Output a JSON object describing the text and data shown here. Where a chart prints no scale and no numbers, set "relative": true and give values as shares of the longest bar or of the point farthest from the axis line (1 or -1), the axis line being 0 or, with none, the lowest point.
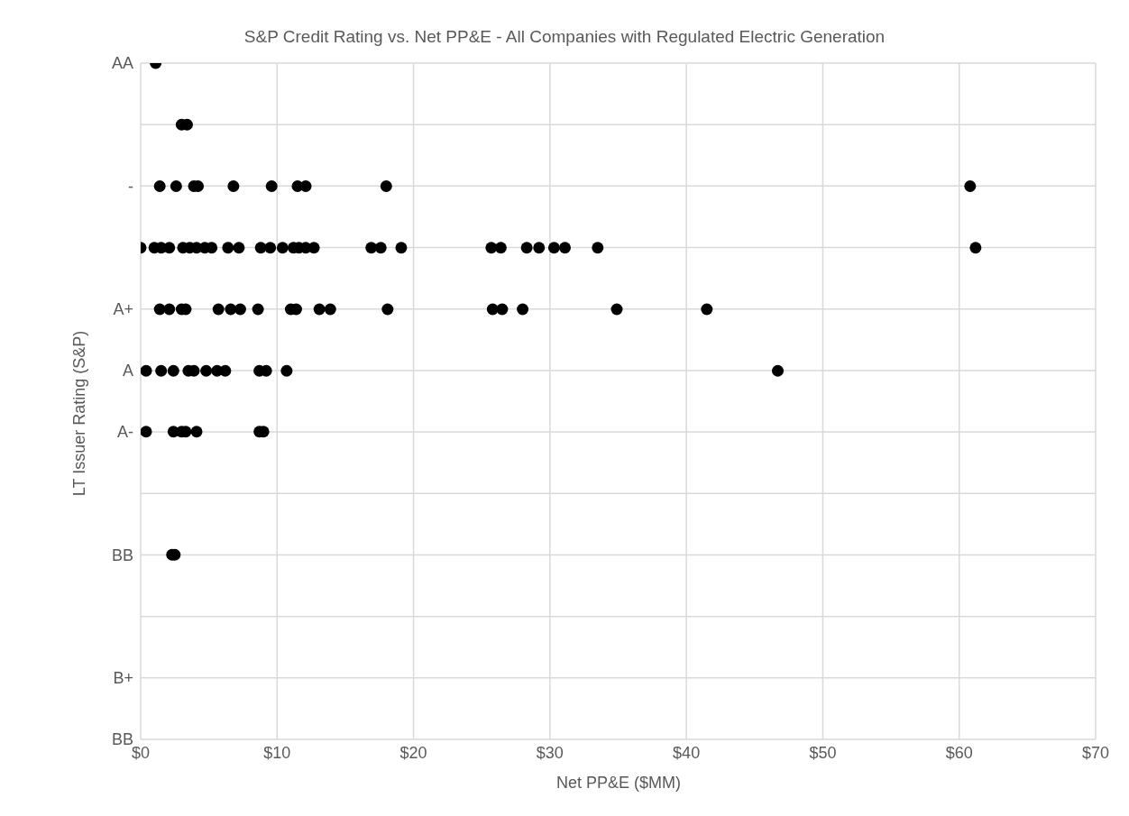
{
  "chart_data": {
    "type": "scatter",
    "title": "S&P Credit Rating vs. Net PP&E - All Companies with Regulated Electric Generation",
    "xlabel": "Net PP&E ($MM)",
    "ylabel": "LT Issuer Rating (S&P)",
    "x": [
      1.1,
      3.0,
      3.4,
      1.4,
      2.6,
      3.9,
      4.2,
      6.8,
      9.6,
      11.5,
      12.1,
      18.0,
      60.8,
      0.0,
      1.0,
      1.5,
      2.1,
      3.1,
      3.6,
      4.1,
      4.7,
      5.2,
      6.4,
      7.2,
      8.8,
      9.5,
      10.4,
      11.2,
      11.6,
      12.1,
      12.7,
      16.9,
      17.6,
      19.1,
      25.7,
      26.4,
      28.3,
      29.2,
      30.3,
      31.1,
      33.5,
      61.2,
      1.4,
      2.1,
      3.0,
      3.3,
      5.7,
      6.6,
      7.3,
      8.6,
      11.0,
      11.4,
      13.1,
      13.9,
      18.1,
      25.8,
      26.5,
      28.0,
      34.9,
      41.5,
      0.4,
      1.5,
      2.4,
      3.5,
      3.9,
      4.8,
      5.6,
      6.2,
      8.7,
      9.2,
      10.7,
      46.7,
      0.4,
      2.4,
      3.0,
      3.3,
      4.1,
      8.7,
      9.0,
      2.3,
      2.5
    ],
    "relative": true,
    "values": [
      1,
      0.909,
      0.909,
      0.818,
      0.818,
      0.818,
      0.818,
      0.818,
      0.818,
      0.818,
      0.818,
      0.818,
      0.818,
      0.727,
      0.727,
      0.727,
      0.727,
      0.727,
      0.727,
      0.727,
      0.727,
      0.727,
      0.727,
      0.727,
      0.727,
      0.727,
      0.727,
      0.727,
      0.727,
      0.727,
      0.727,
      0.727,
      0.727,
      0.727,
      0.727,
      0.727,
      0.727,
      0.727,
      0.727,
      0.727,
      0.727,
      0.727,
      0.636,
      0.636,
      0.636,
      0.636,
      0.636,
      0.636,
      0.636,
      0.636,
      0.636,
      0.636,
      0.636,
      0.636,
      0.636,
      0.636,
      0.636,
      0.636,
      0.636,
      0.636,
      0.545,
      0.545,
      0.545,
      0.545,
      0.545,
      0.545,
      0.545,
      0.545,
      0.545,
      0.545,
      0.545,
      0.545,
      0.455,
      0.455,
      0.455,
      0.455,
      0.455,
      0.455,
      0.455,
      0.273,
      0.273
    ],
    "color": "#000000",
    "marker": "circle",
    "xlim": [
      0,
      70
    ],
    "xticks": [
      {
        "value": 0,
        "label": "$0"
      },
      {
        "value": 10,
        "label": "$10"
      },
      {
        "value": 20,
        "label": "$20"
      },
      {
        "value": 30,
        "label": "$30"
      },
      {
        "value": 40,
        "label": "$40"
      },
      {
        "value": 50,
        "label": "$50"
      },
      {
        "value": 60,
        "label": "$60"
      },
      {
        "value": 70,
        "label": "$70"
      }
    ],
    "y_categories": [
      "AA",
      null,
      "-",
      null,
      "A+",
      "A",
      "A-",
      null,
      "BB",
      null,
      "B+",
      "BB"
    ],
    "grid": true
  }
}
